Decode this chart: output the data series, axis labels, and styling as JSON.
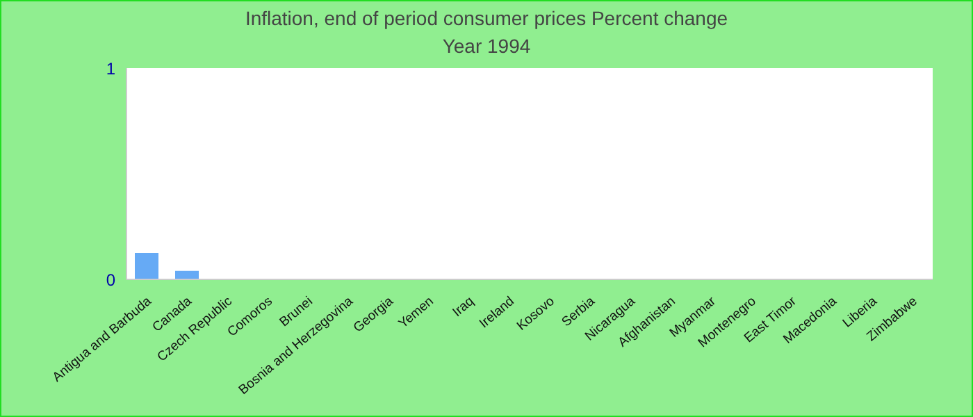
{
  "chart_data": {
    "type": "bar",
    "title": "Inflation, end of period consumer prices  Percent change",
    "subtitle": "Year 1994",
    "categories": [
      "Antigua and Barbuda",
      "Canada",
      "Czech Republic",
      "Comoros",
      "Brunei",
      "Bosnia and Herzegovina",
      "Georgia",
      "Yemen",
      "Iraq",
      "Ireland",
      "Kosovo",
      "Serbia",
      "Nicaragua",
      "Afghanistan",
      "Myanmar",
      "Montenegro",
      "East Timor",
      "Macedonia",
      "Liberia",
      "Zimbabwe"
    ],
    "values": [
      0.125,
      0.04,
      0,
      0,
      0,
      0,
      0,
      0,
      0,
      0,
      0,
      0,
      0,
      0,
      0,
      0,
      0,
      0,
      0,
      0
    ],
    "color": "#66aaf5",
    "ylim": [
      0,
      1
    ],
    "yticks": [
      0,
      1
    ],
    "grid": false
  }
}
